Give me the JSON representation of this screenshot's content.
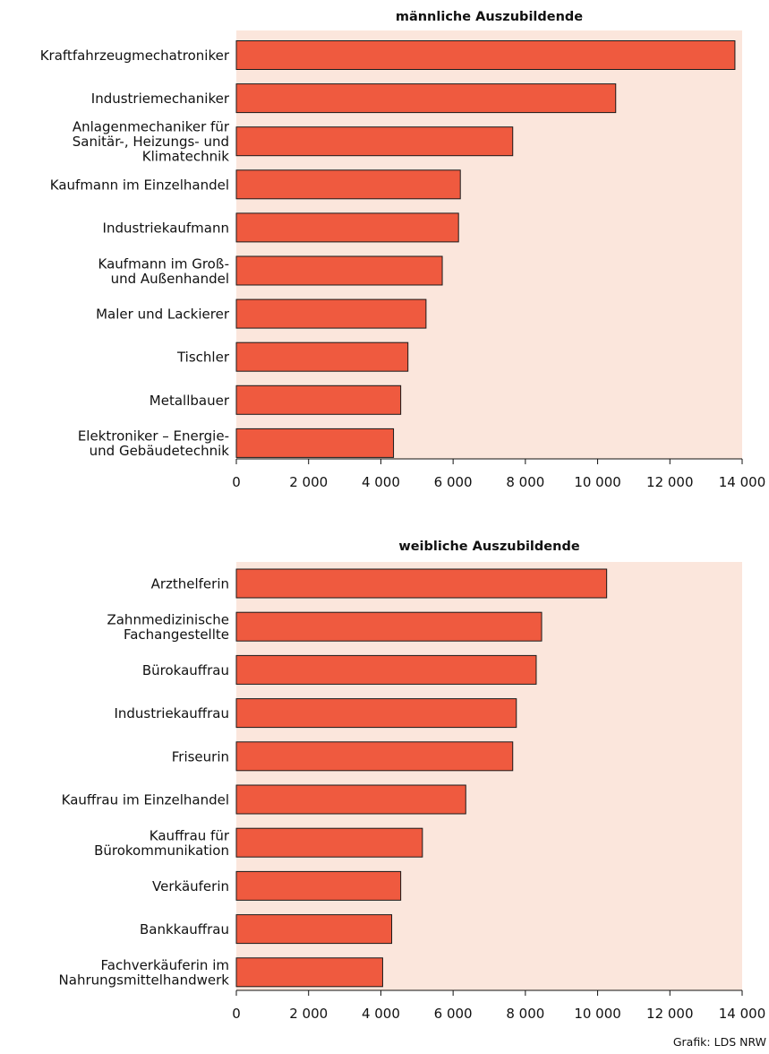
{
  "credit": "Grafik: LDS NRW",
  "colors": {
    "bar": "#ef5a3f",
    "panel_background": "#fbe6dc"
  },
  "chart_data": [
    {
      "type": "bar",
      "orientation": "horizontal",
      "title": "männliche Auszubildende",
      "categories": [
        [
          "Kraftfahrzeugmechatroniker"
        ],
        [
          "Industriemechaniker"
        ],
        [
          "Anlagenmechaniker für",
          "Sanitär-, Heizungs- und",
          "Klimatechnik"
        ],
        [
          "Kaufmann im Einzelhandel"
        ],
        [
          "Industriekaufmann"
        ],
        [
          "Kaufmann im Groß-",
          "und Außenhandel"
        ],
        [
          "Maler und Lackierer"
        ],
        [
          "Tischler"
        ],
        [
          "Metallbauer"
        ],
        [
          "Elektroniker – Energie-",
          "und Gebäudetechnik"
        ]
      ],
      "values": [
        13800,
        10500,
        7650,
        6200,
        6150,
        5700,
        5250,
        4750,
        4550,
        4350
      ],
      "xlim": [
        0,
        14000
      ],
      "xticks": [
        0,
        2000,
        4000,
        6000,
        8000,
        10000,
        12000,
        14000
      ],
      "xtick_labels": [
        "0",
        "2 000",
        "4 000",
        "6 000",
        "8 000",
        "10 000",
        "12 000",
        "14 000"
      ],
      "grid": false
    },
    {
      "type": "bar",
      "orientation": "horizontal",
      "title": "weibliche Auszubildende",
      "categories": [
        [
          "Arzthelferin"
        ],
        [
          "Zahnmedizinische",
          "Fachangestellte"
        ],
        [
          "Bürokauffrau"
        ],
        [
          "Industriekauffrau"
        ],
        [
          "Friseurin"
        ],
        [
          "Kauffrau im Einzelhandel"
        ],
        [
          "Kauffrau für",
          "Bürokommunikation"
        ],
        [
          "Verkäuferin"
        ],
        [
          "Bankkauffrau"
        ],
        [
          "Fachverkäuferin im",
          "Nahrungsmittelhandwerk"
        ]
      ],
      "values": [
        10250,
        8450,
        8300,
        7750,
        7650,
        6350,
        5150,
        4550,
        4300,
        4050
      ],
      "xlim": [
        0,
        14000
      ],
      "xticks": [
        0,
        2000,
        4000,
        6000,
        8000,
        10000,
        12000,
        14000
      ],
      "xtick_labels": [
        "0",
        "2 000",
        "4 000",
        "6 000",
        "8 000",
        "10 000",
        "12 000",
        "14 000"
      ],
      "grid": false
    }
  ]
}
